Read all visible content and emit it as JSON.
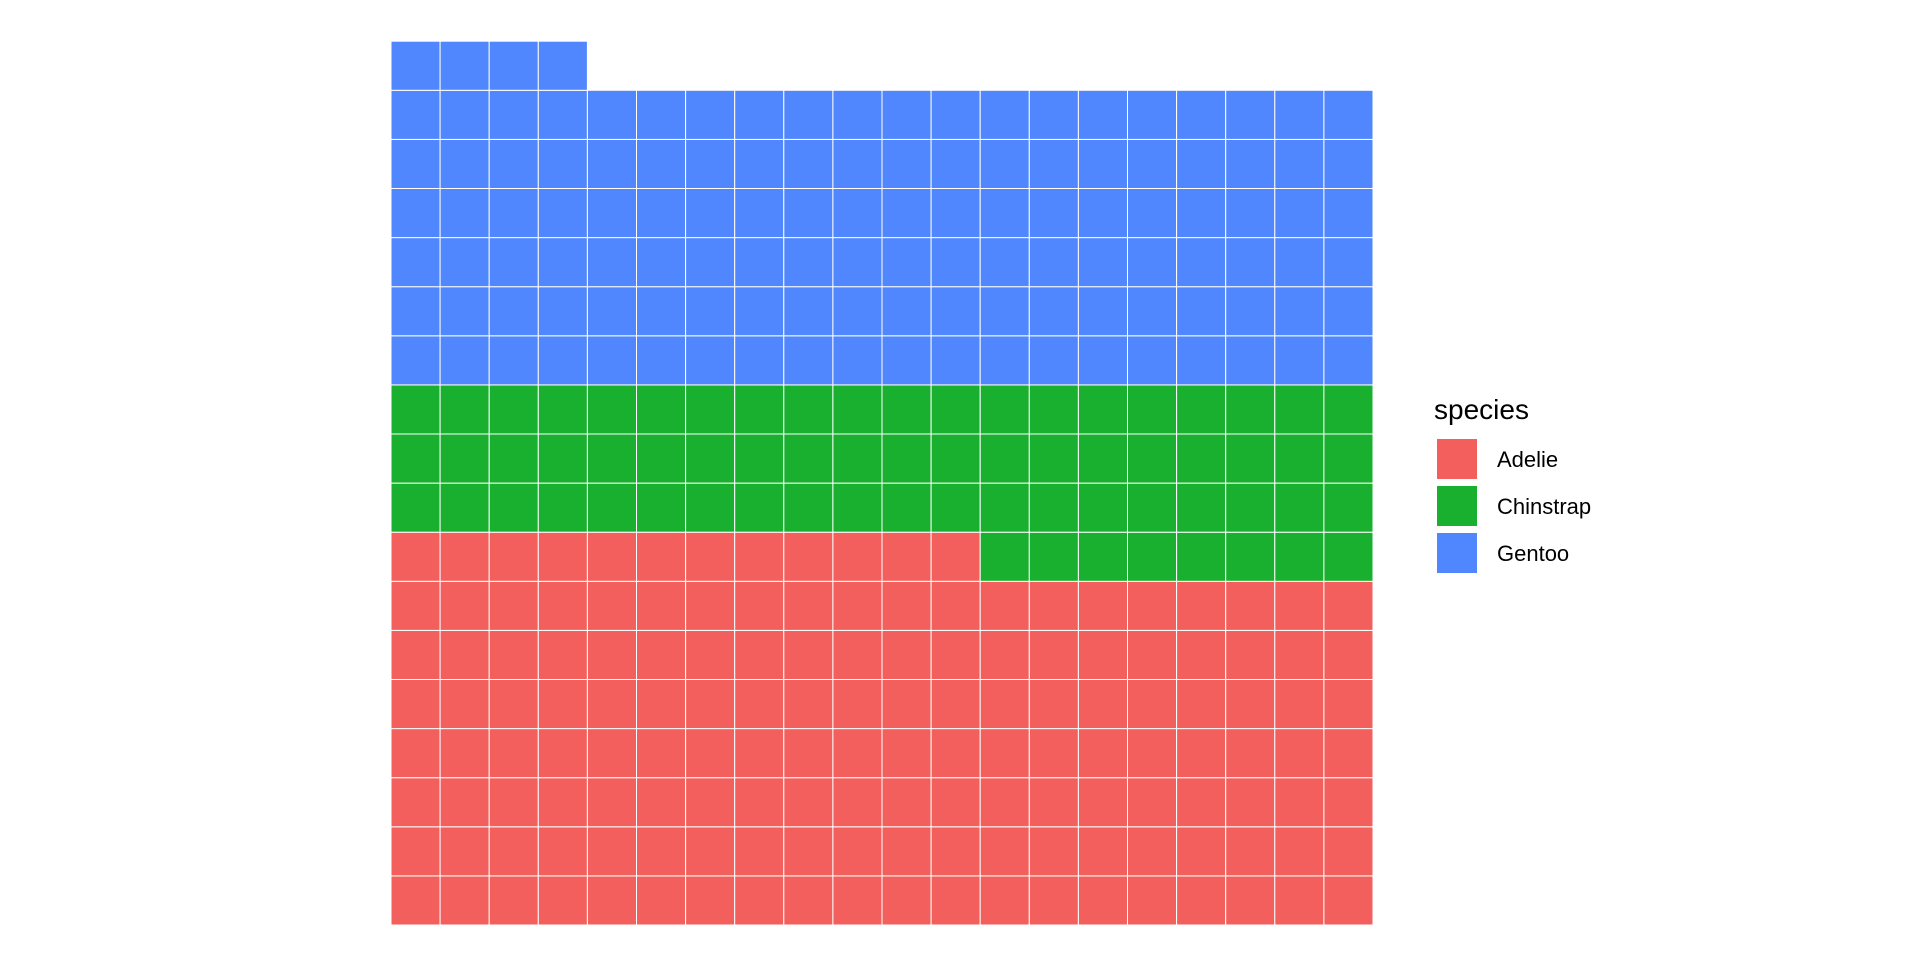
{
  "chart_data": {
    "type": "waffle",
    "grid": {
      "columns": 20,
      "rows": 18,
      "fill_order": "row-wise from bottom-left"
    },
    "series": [
      {
        "name": "Adelie",
        "value": 152,
        "color": "#F25F5C"
      },
      {
        "name": "Chinstrap",
        "value": 68,
        "color": "#19B030"
      },
      {
        "name": "Gentoo",
        "value": 124,
        "color": "#5087FF"
      }
    ],
    "legend": {
      "title": "species",
      "position": "right",
      "items": [
        "Adelie",
        "Chinstrap",
        "Gentoo"
      ]
    },
    "cell_border_color": "#FFFFFF"
  }
}
